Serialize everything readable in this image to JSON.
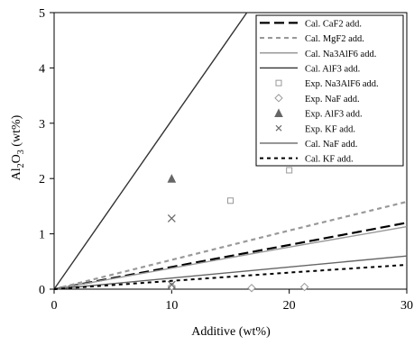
{
  "chart_data": {
    "type": "scatter",
    "xlabel": "Additive (wt%)",
    "ylabel": "Al2O3 (wt%)",
    "ylabel_parts": {
      "pre": "Al",
      "sub1": "2",
      "mid": "O",
      "sub2": "3",
      "post": " (wt%)"
    },
    "xlim": [
      0,
      30
    ],
    "ylim": [
      0,
      5
    ],
    "x_ticks": [
      0,
      10,
      20,
      30
    ],
    "y_ticks": [
      0,
      1,
      2,
      3,
      4,
      5
    ],
    "grid": false,
    "legend_position": "top-right",
    "series": [
      {
        "name": "Cal. CaF2 add.",
        "kind": "line",
        "color": "#000000",
        "dash": "long-dash",
        "points": [
          [
            0,
            0
          ],
          [
            10,
            0.4
          ],
          [
            20,
            0.8
          ],
          [
            30,
            1.2
          ]
        ]
      },
      {
        "name": "Cal. MgF2 add.",
        "kind": "line",
        "color": "#999999",
        "dash": "short-dash",
        "points": [
          [
            0,
            0
          ],
          [
            10,
            0.53
          ],
          [
            20,
            1.06
          ],
          [
            30,
            1.58
          ]
        ]
      },
      {
        "name": "Cal. Na3AlF6 add.",
        "kind": "line",
        "color": "#999999",
        "dash": "solid",
        "points": [
          [
            0,
            0
          ],
          [
            10,
            0.38
          ],
          [
            20,
            0.76
          ],
          [
            30,
            1.13
          ]
        ]
      },
      {
        "name": "Cal. AlF3 add.",
        "kind": "line",
        "color": "#333333",
        "dash": "solid",
        "points": [
          [
            0,
            0
          ],
          [
            10,
            3.05
          ],
          [
            16.4,
            5.0
          ]
        ]
      },
      {
        "name": "Exp. Na3AlF6 add.",
        "kind": "marker",
        "color": "#999999",
        "marker": "square",
        "points": [
          [
            15,
            1.6
          ],
          [
            20,
            2.15
          ]
        ]
      },
      {
        "name": "Exp. NaF add.",
        "kind": "marker",
        "color": "#999999",
        "marker": "diamond",
        "points": [
          [
            10,
            0.05
          ],
          [
            16.8,
            0.02
          ],
          [
            21.3,
            0.04
          ]
        ]
      },
      {
        "name": "Exp. AlF3 add.",
        "kind": "marker",
        "color": "#666666",
        "marker": "triangle",
        "points": [
          [
            10,
            2.0
          ]
        ]
      },
      {
        "name": "Exp. KF add.",
        "kind": "marker",
        "color": "#666666",
        "marker": "cross",
        "points": [
          [
            10,
            1.28
          ],
          [
            10,
            0.08
          ]
        ]
      },
      {
        "name": "Cal. NaF add.",
        "kind": "line",
        "color": "#666666",
        "dash": "solid",
        "points": [
          [
            0,
            0
          ],
          [
            10,
            0.2
          ],
          [
            20,
            0.4
          ],
          [
            30,
            0.6
          ]
        ]
      },
      {
        "name": "Cal. KF add.",
        "kind": "line",
        "color": "#000000",
        "dash": "dotted",
        "points": [
          [
            0,
            0
          ],
          [
            10,
            0.15
          ],
          [
            20,
            0.3
          ],
          [
            30,
            0.44
          ]
        ]
      }
    ]
  }
}
